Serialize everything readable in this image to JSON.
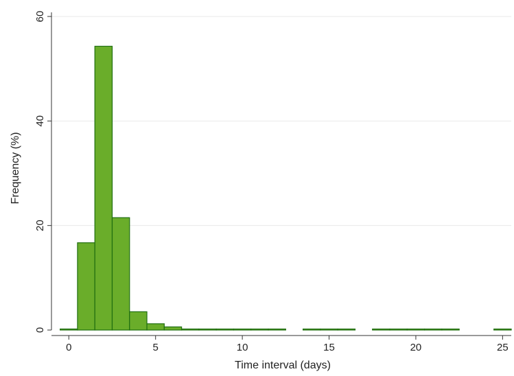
{
  "chart_data": {
    "type": "bar",
    "title": "",
    "xlabel": "Time interval (days)",
    "ylabel": "Frequency (%)",
    "xlim": [
      -1,
      25.5
    ],
    "ylim": [
      0,
      60
    ],
    "x_ticks": [
      0,
      5,
      10,
      15,
      20,
      25
    ],
    "y_ticks": [
      0,
      20,
      40,
      60
    ],
    "grid": "horizontal",
    "bin_width": 1,
    "bins": [
      {
        "x0": -0.5,
        "x1": 0.5,
        "value": 0.2
      },
      {
        "x0": 0.5,
        "x1": 1.5,
        "value": 16.7
      },
      {
        "x0": 1.5,
        "x1": 2.5,
        "value": 54.3
      },
      {
        "x0": 2.5,
        "x1": 3.5,
        "value": 21.5
      },
      {
        "x0": 3.5,
        "x1": 4.5,
        "value": 3.5
      },
      {
        "x0": 4.5,
        "x1": 5.5,
        "value": 1.2
      },
      {
        "x0": 5.5,
        "x1": 6.5,
        "value": 0.6
      },
      {
        "x0": 6.5,
        "x1": 7.5,
        "value": 0.2
      },
      {
        "x0": 7.5,
        "x1": 8.5,
        "value": 0.05
      },
      {
        "x0": 8.5,
        "x1": 9.5,
        "value": 0.05
      },
      {
        "x0": 9.5,
        "x1": 10.5,
        "value": 0.05
      },
      {
        "x0": 10.5,
        "x1": 11.5,
        "value": 0.05
      },
      {
        "x0": 11.5,
        "x1": 12.5,
        "value": 0.05
      },
      {
        "x0": 13.5,
        "x1": 14.5,
        "value": 0.05
      },
      {
        "x0": 14.5,
        "x1": 15.5,
        "value": 0.05
      },
      {
        "x0": 15.5,
        "x1": 16.5,
        "value": 0.05
      },
      {
        "x0": 17.5,
        "x1": 18.5,
        "value": 0.05
      },
      {
        "x0": 18.5,
        "x1": 19.5,
        "value": 0.05
      },
      {
        "x0": 19.5,
        "x1": 20.5,
        "value": 0.05
      },
      {
        "x0": 20.5,
        "x1": 21.5,
        "value": 0.05
      },
      {
        "x0": 21.5,
        "x1": 22.5,
        "value": 0.05
      },
      {
        "x0": 24.5,
        "x1": 25.5,
        "value": 0.05
      }
    ],
    "colors": {
      "bar_fill": "#6aad2a",
      "bar_stroke": "#1f6e10",
      "grid": "#eaeaea",
      "axis": "#333333"
    }
  }
}
